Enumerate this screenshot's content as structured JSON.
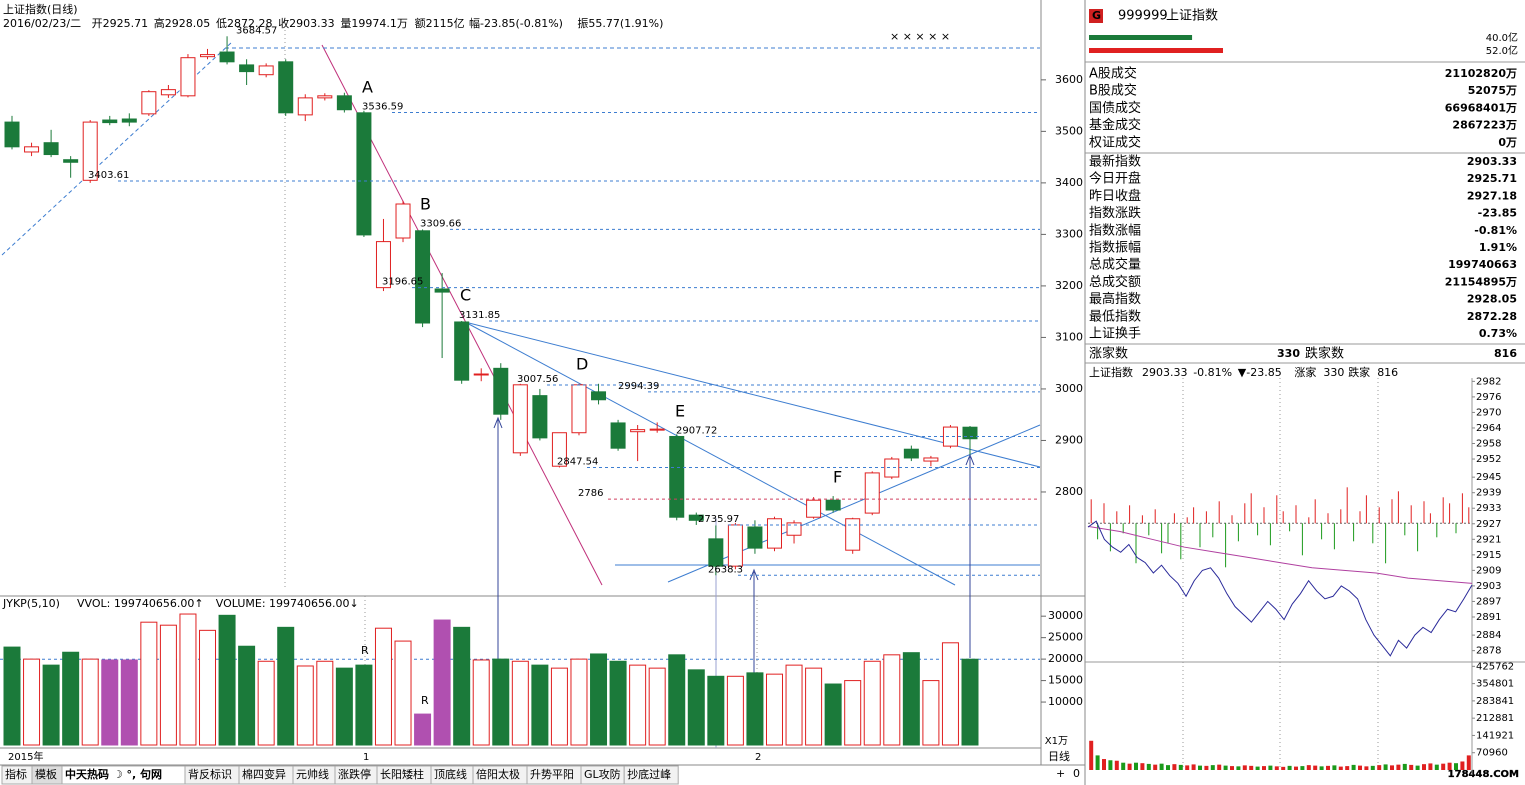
{
  "main_chart": {
    "title": "上证指数(日线)",
    "header": [
      {
        "text": "2016/02/23/二",
        "color": "#000"
      },
      {
        "text": "开2925.71",
        "color": "#000"
      },
      {
        "text": "高2928.05",
        "color": "#e02020"
      },
      {
        "text": "低2872.28",
        "color": "#008000"
      },
      {
        "text": "收2903.33",
        "color": "#008000"
      },
      {
        "text": "量19974.1万",
        "color": "#000"
      },
      {
        "text": "额2115亿",
        "color": "#000"
      },
      {
        "text": "幅-23.85(-0.81%)",
        "color": "#008000"
      },
      {
        "text": "振55.77(1.91%)",
        "color": "#000"
      }
    ],
    "type": "candlestick",
    "ylim": [
      2600,
      3755
    ],
    "yticks": [
      2800,
      2900,
      3000,
      3100,
      3200,
      3300,
      3400,
      3500,
      3600
    ],
    "up_color": "#e02020",
    "down_color": "#1b7a3a",
    "ohlc": [
      [
        3518,
        3530,
        3465,
        3470
      ],
      [
        3460,
        3478,
        3452,
        3470
      ],
      [
        3478,
        3503,
        3450,
        3455
      ],
      [
        3445,
        3452,
        3410,
        3440
      ],
      [
        3405,
        3522,
        3400,
        3518
      ],
      [
        3522,
        3530,
        3512,
        3517
      ],
      [
        3524,
        3535,
        3510,
        3518
      ],
      [
        3534,
        3580,
        3530,
        3577
      ],
      [
        3571,
        3590,
        3565,
        3581
      ],
      [
        3569,
        3650,
        3566,
        3643
      ],
      [
        3645,
        3660,
        3640,
        3649
      ],
      [
        3654,
        3684.57,
        3630,
        3635
      ],
      [
        3629,
        3640,
        3590,
        3616
      ],
      [
        3610,
        3632,
        3605,
        3627
      ],
      [
        3635,
        3640,
        3530,
        3536
      ],
      [
        3532,
        3572,
        3520,
        3565
      ],
      [
        3565,
        3574,
        3560,
        3569
      ],
      [
        3569,
        3575,
        3536.59,
        3542
      ],
      [
        3536,
        3540,
        3295,
        3299
      ],
      [
        3196.65,
        3330,
        3190,
        3286
      ],
      [
        3293,
        3365,
        3285,
        3359
      ],
      [
        3307,
        3309.66,
        3120,
        3128
      ],
      [
        3194,
        3225,
        3060,
        3188
      ],
      [
        3130,
        3131.85,
        3010,
        3017
      ],
      [
        3029,
        3040,
        3015,
        3029
      ],
      [
        3040,
        3050,
        2940,
        2951
      ],
      [
        2876,
        3010,
        2870,
        3008
      ],
      [
        2987,
        3000,
        2900,
        2905
      ],
      [
        2850,
        2915,
        2847.54,
        2915
      ],
      [
        2915,
        3010,
        2910,
        3008
      ],
      [
        2994.39,
        3010,
        2970,
        2979
      ],
      [
        2934,
        2940,
        2880,
        2885
      ],
      [
        2917,
        2930,
        2860,
        2921
      ],
      [
        2920,
        2935,
        2915,
        2922
      ],
      [
        2907.72,
        2912,
        2745,
        2751
      ],
      [
        2755,
        2760,
        2735.97,
        2745
      ],
      [
        2709,
        2735,
        2638.3,
        2656
      ],
      [
        2656,
        2740,
        2650,
        2736
      ],
      [
        2732,
        2745,
        2680,
        2691
      ],
      [
        2691,
        2752,
        2685,
        2748
      ],
      [
        2716,
        2745,
        2700,
        2740
      ],
      [
        2751,
        2790,
        2748,
        2784
      ],
      [
        2784,
        2792,
        2760,
        2765
      ],
      [
        2687,
        2750,
        2680,
        2748
      ],
      [
        2759,
        2840,
        2755,
        2837
      ],
      [
        2829,
        2868,
        2825,
        2864
      ],
      [
        2883,
        2890,
        2860,
        2866
      ],
      [
        2860,
        2870,
        2850,
        2866
      ],
      [
        2889,
        2930,
        2885,
        2926
      ],
      [
        2925.71,
        2928.05,
        2872.28,
        2903.33
      ]
    ],
    "price_labels": [
      3684.57,
      3536.59,
      3403.61,
      3309.66,
      3196.65,
      3131.85,
      3007.56,
      2994.39,
      2907.72,
      2847.54,
      2786.0,
      2735.97,
      2638.3
    ],
    "wave_labels": [
      "A",
      "B",
      "C",
      "D",
      "E",
      "F"
    ],
    "marks": [
      "× × × × ×",
      "R",
      "R"
    ],
    "x_labels": [
      "2015年",
      "1",
      "2"
    ]
  },
  "volume_chart": {
    "header": [
      {
        "text": "JYKP(5,10)",
        "color": "#000"
      },
      {
        "text": "VVOL: 199740656.00↑",
        "color": "#000"
      },
      {
        "text": "VOLUME: 199740656.00↓",
        "color": "#b03090"
      }
    ],
    "ylim": [
      0,
      34000
    ],
    "yticks": [
      10000,
      15000,
      20000,
      25000,
      30000
    ],
    "unit": "X1万",
    "highlight_color": "#b050b0",
    "highlight": [
      5,
      6,
      21,
      22
    ],
    "values": [
      22800,
      20000,
      18600,
      21600,
      20000,
      19800,
      19800,
      28600,
      27900,
      30500,
      26700,
      30200,
      23000,
      19500,
      27400,
      18400,
      19500,
      17900,
      18600,
      27200,
      24200,
      7200,
      29100,
      27400,
      19800,
      20000,
      19500,
      18600,
      17900,
      20000,
      21200,
      19500,
      18600,
      17900,
      21000,
      17500,
      16000,
      16000,
      16800,
      16500,
      18600,
      17900,
      14200,
      15000,
      19500,
      21000,
      21500,
      15000,
      23800,
      19974.1
    ]
  },
  "quote_panel": {
    "badge": "G",
    "code": "999999",
    "name": "上证指数",
    "bars": [
      {
        "label": "40.0亿",
        "value": 40.0,
        "color": "#1b7a3a"
      },
      {
        "label": "52.0亿",
        "value": 52.0,
        "color": "#e02020"
      }
    ],
    "rows": [
      {
        "label": "A股成交",
        "value": "21102820万",
        "color": "#e02020"
      },
      {
        "label": "B股成交",
        "value": "52075万",
        "color": "#e02020"
      },
      {
        "label": "国债成交",
        "value": "66968401万",
        "color": "#e02020"
      },
      {
        "label": "基金成交",
        "value": "2867223万",
        "color": "#e02020"
      },
      {
        "label": "权证成交",
        "value": "0万",
        "color": "#e02020"
      },
      {
        "label": "最新指数",
        "value": "2903.33",
        "color": "#008000"
      },
      {
        "label": "今日开盘",
        "value": "2925.71",
        "color": "#008000"
      },
      {
        "label": "昨日收盘",
        "value": "2927.18",
        "color": "#000"
      },
      {
        "label": "指数涨跌",
        "value": "-23.85",
        "color": "#008000"
      },
      {
        "label": "指数涨幅",
        "value": "-0.81%",
        "color": "#008000"
      },
      {
        "label": "指数振幅",
        "value": "1.91%",
        "color": "#000"
      },
      {
        "label": "总成交量",
        "value": "199740663",
        "color": "#e02020"
      },
      {
        "label": "总成交额",
        "value": "21154895万",
        "color": "#e02020"
      },
      {
        "label": "最高指数",
        "value": "2928.05",
        "color": "#008000"
      },
      {
        "label": "最低指数",
        "value": "2872.28",
        "color": "#008000"
      },
      {
        "label": "上证换手",
        "value": "0.73%",
        "color": "#000"
      }
    ],
    "breadth": {
      "up_label": "涨家数",
      "up": "330",
      "down_label": "跌家数",
      "down": "816"
    }
  },
  "intraday_chart": {
    "header": [
      {
        "text": "上证指数",
        "color": "#000"
      },
      {
        "text": "2903.33",
        "color": "#008000"
      },
      {
        "text": "-0.81%",
        "color": "#008000"
      },
      {
        "text": "▼-23.85",
        "color": "#008000"
      },
      {
        "text": "涨家",
        "color": "#000"
      },
      {
        "text": "330",
        "color": "#e02020"
      },
      {
        "text": "跌家",
        "color": "#000"
      },
      {
        "text": "816",
        "color": "#008000"
      }
    ],
    "prev_close": 2927.18,
    "ylim": [
      2874,
      2986
    ],
    "yticks": [
      2982,
      2976,
      2970,
      2964,
      2958,
      2952,
      2945,
      2939,
      2933,
      2927,
      2921,
      2915,
      2909,
      2903,
      2897,
      2891,
      2884,
      2878
    ],
    "price": [
      2925.7,
      2928,
      2921,
      2918,
      2916,
      2919,
      2914,
      2912,
      2908,
      2911,
      2907,
      2904,
      2899,
      2905,
      2909,
      2910,
      2906,
      2900,
      2895,
      2892,
      2889,
      2893,
      2897,
      2894,
      2890,
      2896,
      2900,
      2905,
      2901,
      2898,
      2899,
      2903,
      2901,
      2898,
      2890,
      2884,
      2880,
      2876,
      2882,
      2879,
      2884,
      2887,
      2885,
      2890,
      2894,
      2893,
      2898,
      2903.33
    ],
    "average": [
      2926,
      2924,
      2921,
      2918,
      2916,
      2914,
      2912,
      2910,
      2909,
      2908,
      2906,
      2905,
      2904
    ],
    "rg_bars": [
      12,
      -8,
      10,
      -14,
      6,
      -5,
      9,
      -20,
      4,
      -6,
      7,
      -15,
      -10,
      5,
      -18,
      3,
      8,
      -12,
      6,
      -7,
      11,
      -22,
      4,
      -9,
      10,
      15,
      -6,
      8,
      -11,
      14,
      6,
      -4,
      9,
      -16,
      3,
      12,
      -8,
      5,
      -13,
      7,
      18,
      -9,
      6,
      14,
      -10,
      8,
      -20,
      12,
      16,
      -6,
      9,
      -14,
      11,
      5,
      -7,
      13,
      10,
      -5,
      15,
      8
    ],
    "price_color": "#2a2a9a",
    "average_color": "#b040a0",
    "up_color": "#e02020",
    "down_color": "#1b9a1b",
    "vol_ylim": [
      0,
      460000
    ],
    "vol_yticks": [
      425762,
      354801,
      283841,
      212881,
      141921,
      70960
    ],
    "volume": [
      120000,
      60000,
      45000,
      40000,
      38000,
      30000,
      26000,
      30000,
      28000,
      25000,
      22000,
      26000,
      20000,
      24000,
      21000,
      19000,
      23000,
      18000,
      17000,
      20000,
      22000,
      18000,
      16000,
      15000,
      19000,
      17000,
      14000,
      16000,
      18000,
      15000,
      13000,
      17000,
      14000,
      16000,
      20000,
      18000,
      15000,
      17000,
      19000,
      14000,
      16000,
      21000,
      18000,
      15000,
      17000,
      20000,
      23000,
      19000,
      22000,
      25000,
      21000,
      18000,
      24000,
      27000,
      22000,
      26000,
      30000,
      28000,
      35000,
      60000
    ]
  },
  "toolbar": {
    "tabs": [
      "指标",
      "模板",
      "中天热码 ☽ °, 句网",
      "背反标识",
      "棉四变异",
      "元帅线",
      "涨跌停",
      "长阳矮柱",
      "顶底线",
      "倍阳太极",
      "升势平阳",
      "GL攻防",
      "抄底过峰"
    ],
    "period": "日线",
    "zoom": [
      "+",
      "0"
    ]
  },
  "watermark": "178448.COM"
}
